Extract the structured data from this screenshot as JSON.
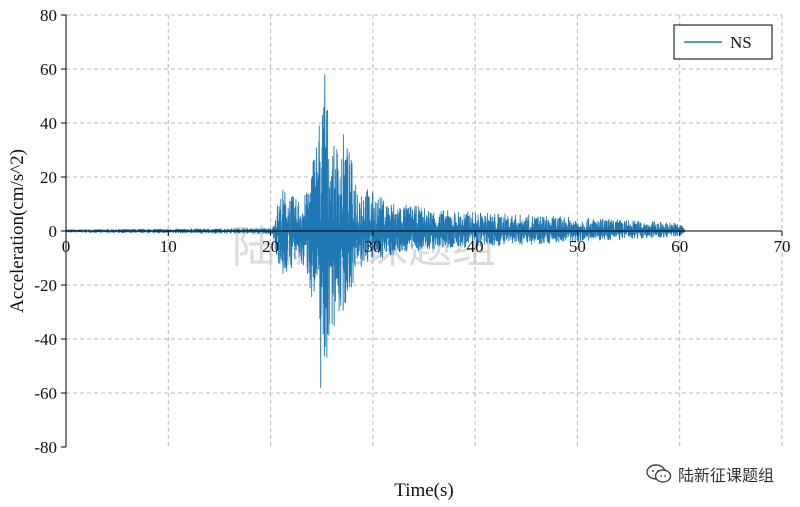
{
  "chart_data": {
    "type": "line",
    "xlabel": "Time(s)",
    "ylabel": "Acceleration(cm/s^2)",
    "xlim": [
      0,
      70
    ],
    "ylim": [
      -80,
      80
    ],
    "x_ticks": [
      0,
      10,
      20,
      30,
      40,
      50,
      60,
      70
    ],
    "y_ticks": [
      -80,
      -60,
      -40,
      -20,
      0,
      20,
      40,
      60,
      80
    ],
    "grid": true,
    "legend_position": "top-right",
    "series": [
      {
        "name": "NS",
        "color": "#1f77b4",
        "duration_s": 60.5,
        "envelope": {
          "t": [
            0,
            20.2,
            20.5,
            21.2,
            22.5,
            23.5,
            24.2,
            24.8,
            25.1,
            25.3,
            25.6,
            26.0,
            26.6,
            27.2,
            27.8,
            28.5,
            29.5,
            31,
            33,
            36,
            40,
            45,
            50,
            55,
            60,
            60.5
          ],
          "max": [
            0.5,
            1,
            8,
            16,
            12,
            14,
            30,
            45,
            50,
            58,
            46,
            30,
            34,
            37,
            28,
            20,
            16,
            12,
            10,
            8,
            7,
            6,
            5,
            4,
            3,
            1
          ],
          "min": [
            -0.5,
            -1,
            -8,
            -18,
            -12,
            -15,
            -28,
            -35,
            -50,
            -58,
            -45,
            -36,
            -34,
            -30,
            -22,
            -16,
            -12,
            -10,
            -8,
            -7,
            -6,
            -5,
            -4,
            -3,
            -2,
            -1
          ]
        },
        "peak_positive": {
          "t": 25.3,
          "value": 58
        },
        "peak_negative": {
          "t": 24.9,
          "value": -58
        }
      }
    ]
  },
  "watermark_text": "陆新征课题组",
  "footer_badge": {
    "icon": "wechat-icon",
    "text": "陆新征课题组"
  }
}
